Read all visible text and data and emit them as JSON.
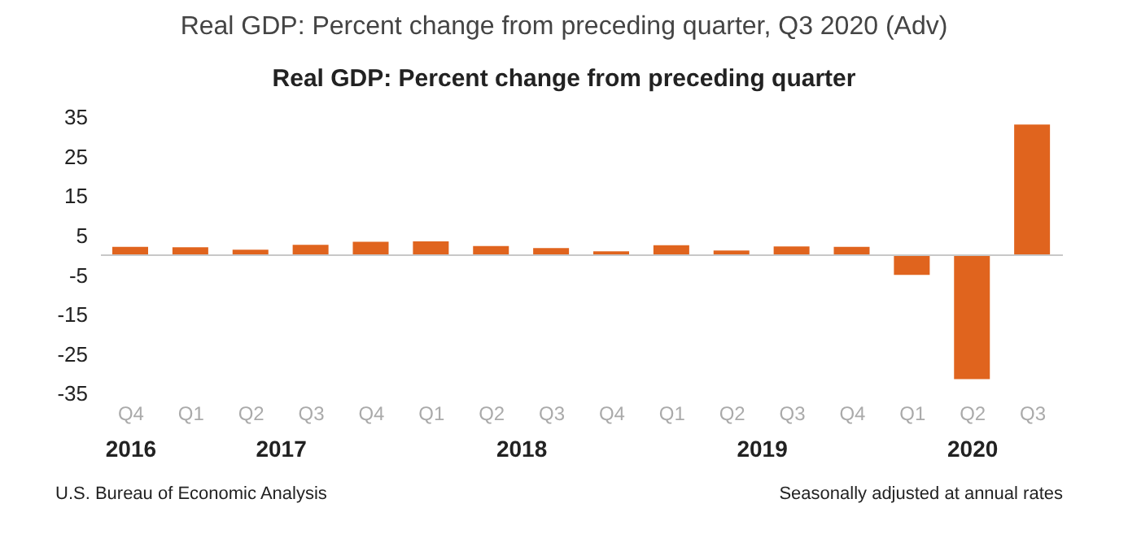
{
  "chart_data": {
    "type": "bar",
    "title": "Real GDP: Percent change from preceding quarter, Q3 2020 (Adv)",
    "subtitle": "Real GDP:  Percent change from preceding quarter",
    "categories": [
      "Q4",
      "Q1",
      "Q2",
      "Q3",
      "Q4",
      "Q1",
      "Q2",
      "Q3",
      "Q4",
      "Q1",
      "Q2",
      "Q3",
      "Q4",
      "Q1",
      "Q2",
      "Q3"
    ],
    "values": [
      2.1,
      2.0,
      1.4,
      2.6,
      3.4,
      3.5,
      2.3,
      1.8,
      1.0,
      2.5,
      1.2,
      2.2,
      2.1,
      -5.0,
      -31.4,
      33.1
    ],
    "color": "#e0641e",
    "ylim": [
      -35,
      35
    ],
    "yticks": [
      -35,
      -25,
      -15,
      -5,
      5,
      15,
      25,
      35
    ],
    "grid": false,
    "legend": false,
    "ref_lines": [
      {
        "axis": "y",
        "value": 0,
        "color": "#c8c8c8"
      }
    ],
    "annotations": [
      "2016",
      "2017",
      "2018",
      "2019",
      "2020",
      "U.S. Bureau of Economic Analysis",
      "Seasonally adjusted at annual rates"
    ]
  }
}
